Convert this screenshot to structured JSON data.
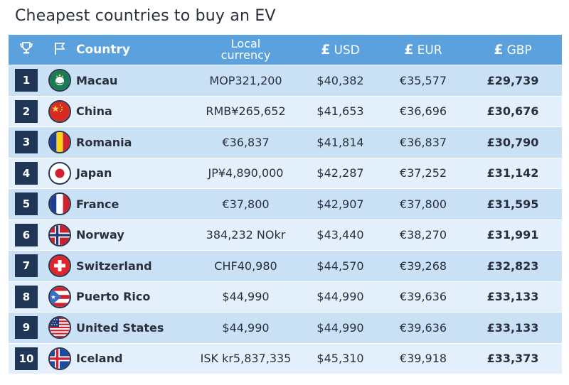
{
  "title": "Cheapest countries to buy an EV",
  "header": {
    "country": "Country",
    "local_line1": "Local",
    "local_line2": "currency",
    "usd_symbol": "£",
    "usd": "USD",
    "eur_symbol": "£",
    "eur": "EUR",
    "gbp_symbol": "£",
    "gbp": "GBP",
    "trophy_icon": "trophy-icon",
    "flag_icon": "flag-icon"
  },
  "rows": [
    {
      "rank": "1",
      "country": "Macau",
      "flag": "macau-flag-icon",
      "local": "MOP321,200",
      "usd": "$40,382",
      "eur": "€35,577",
      "gbp": "£29,739"
    },
    {
      "rank": "2",
      "country": "China",
      "flag": "china-flag-icon",
      "local": "RMB¥265,652",
      "usd": "$41,653",
      "eur": "€36,696",
      "gbp": "£30,676"
    },
    {
      "rank": "3",
      "country": "Romania",
      "flag": "romania-flag-icon",
      "local": "€36,837",
      "usd": "$41,814",
      "eur": "€36,837",
      "gbp": "£30,790"
    },
    {
      "rank": "4",
      "country": "Japan",
      "flag": "japan-flag-icon",
      "local": "JP¥4,890,000",
      "usd": "$42,287",
      "eur": "€37,252",
      "gbp": "£31,142"
    },
    {
      "rank": "5",
      "country": "France",
      "flag": "france-flag-icon",
      "local": "€37,800",
      "usd": "$42,907",
      "eur": "€37,800",
      "gbp": "£31,595"
    },
    {
      "rank": "6",
      "country": "Norway",
      "flag": "norway-flag-icon",
      "local": "384,232 NOkr",
      "usd": "$43,440",
      "eur": "€38,270",
      "gbp": "£31,991"
    },
    {
      "rank": "7",
      "country": "Switzerland",
      "flag": "switzerland-flag-icon",
      "local": "CHF40,980",
      "usd": "$44,570",
      "eur": "€39,268",
      "gbp": "£32,823"
    },
    {
      "rank": "8",
      "country": "Puerto Rico",
      "flag": "puerto-rico-flag-icon",
      "local": "$44,990",
      "usd": "$44,990",
      "eur": "€39,636",
      "gbp": "£33,133"
    },
    {
      "rank": "9",
      "country": "United States",
      "flag": "united-states-flag-icon",
      "local": "$44,990",
      "usd": "$44,990",
      "eur": "€39,636",
      "gbp": "£33,133"
    },
    {
      "rank": "10",
      "country": "Iceland",
      "flag": "iceland-flag-icon",
      "local": "ISK kr5,837,335",
      "usd": "$45,310",
      "eur": "€39,918",
      "gbp": "£33,373"
    }
  ],
  "colors": {
    "header_bg": "#5aa1de",
    "row_odd": "#c9e0f5",
    "row_even": "#e3f0fb",
    "rank_box": "#1f3656"
  }
}
